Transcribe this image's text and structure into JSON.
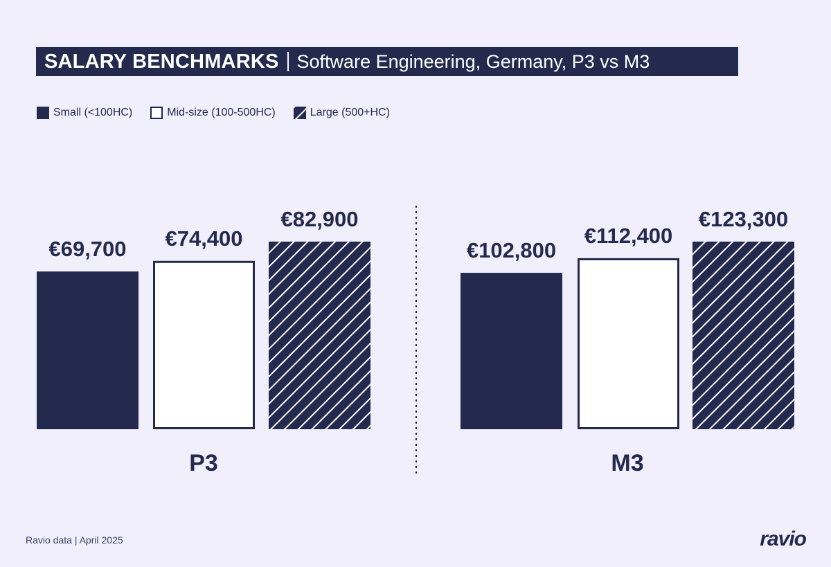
{
  "title": {
    "main": "SALARY BENCHMARKS",
    "subtitle": "Software Engineering, Germany, P3 vs M3"
  },
  "colors": {
    "navy": "#232a4e",
    "background": "#f1effc",
    "white": "#ffffff"
  },
  "chart_data": {
    "type": "bar",
    "categories": [
      "P3",
      "M3"
    ],
    "series": [
      {
        "name": "Small (<100HC)",
        "style": "solid",
        "values": [
          69700,
          102800
        ],
        "labels": [
          "€69,700",
          "€102,800"
        ]
      },
      {
        "name": "Mid-size (100-500HC)",
        "style": "outline",
        "values": [
          74400,
          112400
        ],
        "labels": [
          "€74,400",
          "€112,400"
        ]
      },
      {
        "name": "Large (500+HC)",
        "style": "hatched",
        "values": [
          82900,
          123300
        ],
        "labels": [
          "€82,900",
          "€123,300"
        ]
      }
    ],
    "legend_position": "top-left",
    "grid": false,
    "axes_visible": false,
    "scale": "each group scaled independently"
  },
  "footer": {
    "source": "Ravio data",
    "date": "April 2025"
  },
  "logo": "ravio"
}
